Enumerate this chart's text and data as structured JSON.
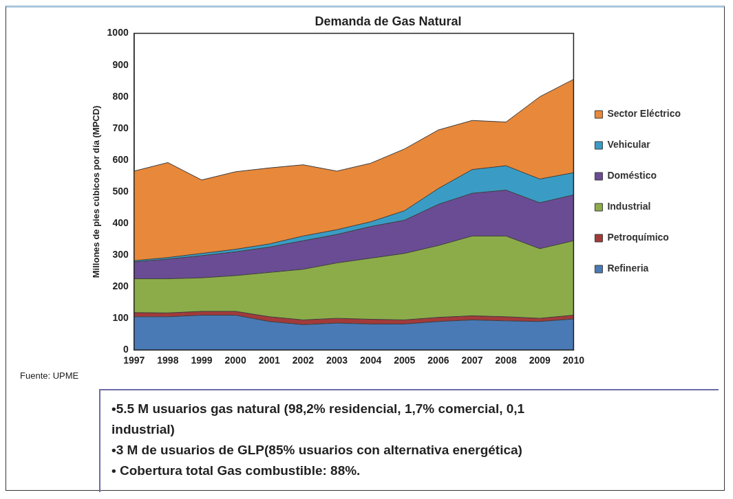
{
  "chart_data": {
    "type": "area",
    "title": "Demanda de Gas Natural",
    "ylabel": "Millones de pies cúbicos por día (MPCD)",
    "categories": [
      "1997",
      "1998",
      "1999",
      "2000",
      "2001",
      "2002",
      "2003",
      "2004",
      "2005",
      "2006",
      "2007",
      "2008",
      "2009",
      "2010"
    ],
    "series": [
      {
        "name": "Refineria",
        "color": "#4a7ab5",
        "values": [
          105,
          105,
          110,
          110,
          90,
          80,
          85,
          82,
          82,
          90,
          95,
          92,
          90,
          98
        ]
      },
      {
        "name": "Petroquímico",
        "color": "#a33a3a",
        "values": [
          13,
          12,
          12,
          12,
          15,
          15,
          15,
          15,
          13,
          13,
          13,
          13,
          10,
          12
        ]
      },
      {
        "name": "Industrial",
        "color": "#8cac4a",
        "values": [
          107,
          108,
          106,
          113,
          140,
          160,
          175,
          193,
          210,
          227,
          252,
          255,
          220,
          235
        ]
      },
      {
        "name": "Doméstico",
        "color": "#6a4c94",
        "values": [
          53,
          62,
          70,
          75,
          80,
          90,
          90,
          100,
          105,
          130,
          135,
          145,
          145,
          145
        ]
      },
      {
        "name": "Vehicular",
        "color": "#3a9cc4",
        "values": [
          4,
          5,
          7,
          8,
          10,
          15,
          15,
          15,
          30,
          50,
          75,
          77,
          75,
          70
        ]
      },
      {
        "name": "Sector Eléctrico",
        "color": "#e8883a",
        "values": [
          283,
          300,
          232,
          245,
          240,
          225,
          185,
          185,
          195,
          185,
          155,
          138,
          260,
          295
        ]
      }
    ],
    "stacked": true,
    "ylim": [
      0,
      1000
    ],
    "yticks": [
      0,
      100,
      200,
      300,
      400,
      500,
      600,
      700,
      800,
      900,
      1000
    ],
    "grid": false,
    "legend": "right",
    "marker": "none",
    "annotations": [
      "Fuente: UPME",
      "•5.5 M usuarios gas natural  (98,2% residencial, 1,7% comercial, 0,1 industrial)",
      "•3 M de usuarios de GLP(85% usuarios con alternativa energética)",
      "• Cobertura total Gas combustible: 88%."
    ]
  }
}
